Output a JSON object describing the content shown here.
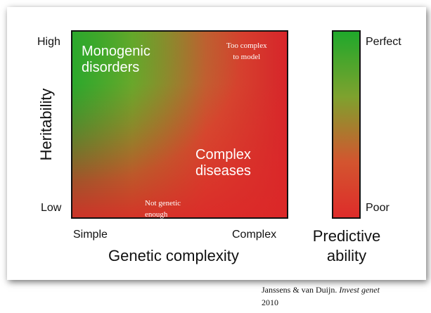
{
  "y_axis": {
    "label": "Heritability",
    "high": "High",
    "low": "Low"
  },
  "x_axis": {
    "label": "Genetic complexity",
    "simple": "Simple",
    "complex": "Complex"
  },
  "regions": {
    "monogenic": {
      "line1": "Monogenic",
      "line2": "disorders"
    },
    "too_complex": {
      "line1": "Too complex",
      "line2": "to model"
    },
    "complex_diseases": {
      "line1": "Complex",
      "line2": "diseases"
    },
    "not_genetic": {
      "line1": "Not genetic",
      "line2": "enough"
    }
  },
  "scale": {
    "top": "Perfect",
    "bottom": "Poor",
    "title_line1": "Predictive",
    "title_line2": "ability"
  },
  "citation": {
    "authors": "Janssens & van Duijn.",
    "journal": "Invest genet",
    "year": "2010"
  },
  "colors": {
    "green": "#2fa62f",
    "red": "#d7252a",
    "border": "#111111"
  }
}
